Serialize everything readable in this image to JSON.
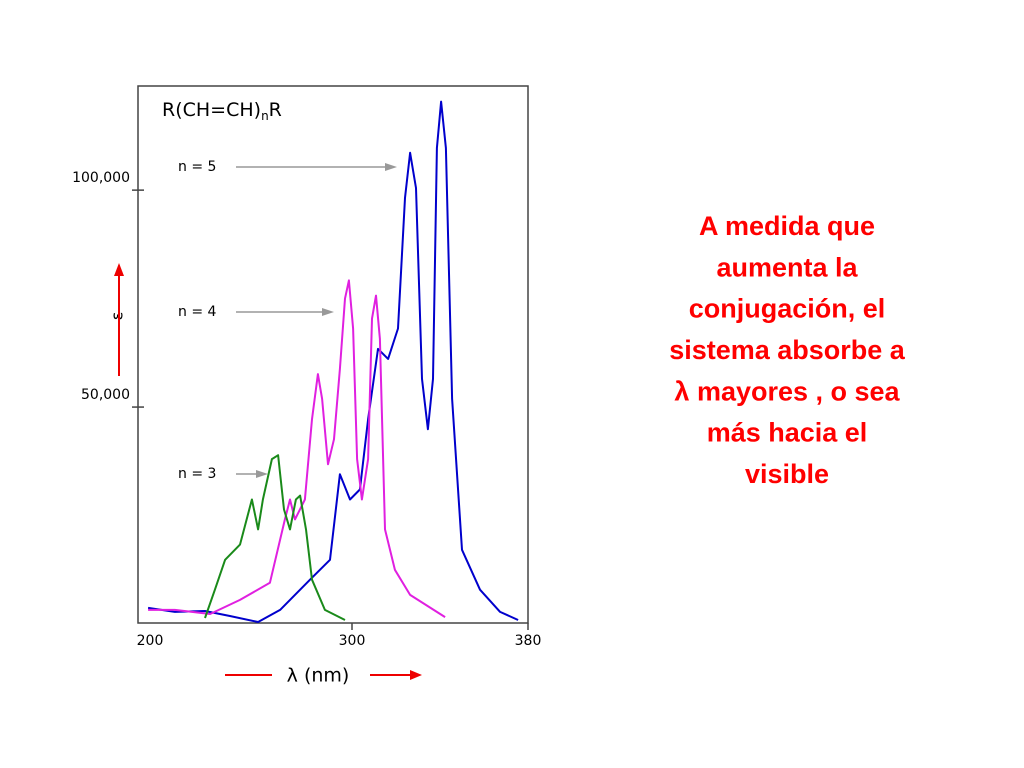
{
  "chart_data": {
    "type": "line",
    "title_parts": [
      "R(CH=CH)",
      "n",
      "R"
    ],
    "x_label": "λ (nm)",
    "y_label": "ε",
    "xlim": [
      200,
      380
    ],
    "ylim": [
      0,
      124000
    ],
    "xticks": [
      200,
      300,
      380
    ],
    "yticks": [
      {
        "value": 50000,
        "label": "50,000"
      },
      {
        "value": 100000,
        "label": "100,000"
      }
    ],
    "series": [
      {
        "name": "n = 5",
        "color": "#0000cc",
        "x": [
          207.3,
          219.5,
          233.2,
          244.5,
          257.3,
          267.3,
          280.9,
          290,
          294.5,
          299.1,
          303.6,
          307.3,
          311.8,
          316.4,
          320.9,
          324.1,
          326.4,
          329.1,
          331.8,
          334.5,
          336.8,
          338.6,
          340.5,
          342.7,
          345.5,
          350,
          358.2,
          367.3,
          375.5
        ],
        "values": [
          3700,
          2800,
          3000,
          1850,
          460,
          3240,
          10200,
          14800,
          34500,
          28700,
          31000,
          47200,
          63400,
          61100,
          68100,
          98200,
          108600,
          100500,
          56500,
          44900,
          56500,
          109700,
          120400,
          109700,
          51900,
          17100,
          7900,
          2800,
          930
        ]
      },
      {
        "name": "n = 4",
        "color": "#e020e0",
        "x": [
          207.3,
          219.5,
          235.5,
          249.1,
          262.7,
          269.5,
          271.8,
          274.1,
          278.6,
          281.8,
          284.5,
          286.4,
          289.1,
          291.8,
          294.5,
          296.8,
          298.6,
          300.5,
          302.3,
          304.5,
          307.3,
          309.1,
          310.9,
          312.7,
          315,
          319.5,
          326.4,
          342.3
        ],
        "values": [
          3240,
          3240,
          2300,
          5560,
          9500,
          24100,
          28700,
          24100,
          28700,
          47200,
          57600,
          51900,
          36800,
          42600,
          58800,
          75000,
          79200,
          68100,
          38000,
          28700,
          38000,
          70400,
          75700,
          65700,
          21800,
          12500,
          6700,
          1600
        ]
      },
      {
        "name": "n = 3",
        "color": "#1a8a1a",
        "x": [
          233.2,
          237.7,
          242.3,
          249.1,
          254.5,
          257.3,
          259.5,
          263.6,
          266.4,
          269.1,
          271.8,
          274.5,
          276.4,
          279.1,
          281.8,
          287.7,
          296.8
        ],
        "values": [
          1390,
          7900,
          14800,
          18300,
          28700,
          21800,
          28700,
          38000,
          38900,
          26400,
          21800,
          28700,
          29600,
          21800,
          10200,
          3240,
          930
        ]
      }
    ]
  },
  "note": [
    "A medida que",
    "aumenta la",
    "conjugación, el",
    "sistema absorbe a",
    "λ mayores , o sea",
    "más hacia el",
    "visible"
  ]
}
